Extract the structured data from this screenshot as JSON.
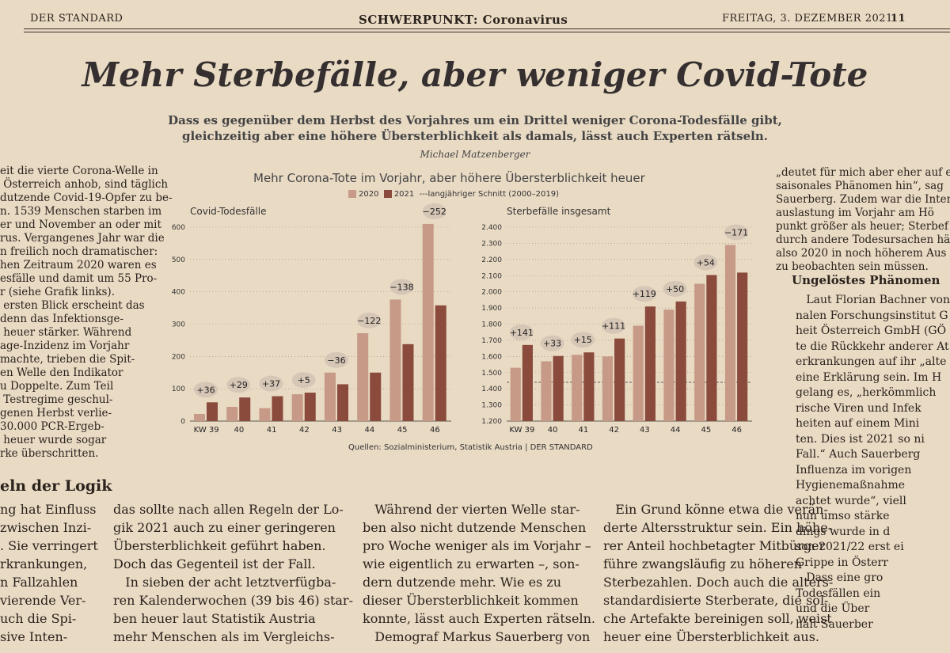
{
  "masthead": {
    "paper": "DER STANDARD",
    "section": "SCHWERPUNKT: Coronavirus",
    "date": "FREITAG, 3. DEZEMBER 2021",
    "page": "11"
  },
  "article": {
    "headline": "Mehr Sterbefälle, aber weniger Covid-Tote",
    "subhead_line1": "Dass es gegenüber dem Herbst des Vorjahres um ein Drittel weniger Corona-Todesfälle gibt,",
    "subhead_line2": "gleichzeitig aber eine höhere Übersterblichkeit als damals, lässt auch Experten rätseln.",
    "author": "Michael Matzenberger",
    "left_col": "eit die vierte Corona-Welle in\n Österreich anhob, sind täglich\ndutzende Covid-19-Opfer zu be-\nn. 1539 Menschen starben im\ner und November an oder mit\nrus. Vergangenes Jahr war die\nn freilich noch dramatischer:\nhen Zeitraum 2020 waren es\nesfälle und damit um 55 Pro-\nr (siehe Grafik links).\n ersten Blick erscheint das\ndenn das Infektionsge-\n heuer stärker. Während\nage-Inzidenz im Vorjahr\nmachte, trieben die Spit-\nen Welle den Indikator\nu Doppelte. Zum Teil\n Testregime geschul-\ngenen Herbst verlie-\n30.000 PCR-Ergeb-\n heuer wurde sogar\nrke überschritten.",
    "left_section": "eln der Logik",
    "left_col2": "ng hat Einfluss\nzwischen Inzi-\n. Sie verringert\nrkrankungen,\nn Fallzahlen\nvierende Ver-\nuch die Spi-\nsive Inten-",
    "body_col1": "das sollte nach allen Regeln der Lo-\ngik 2021 auch zu einer geringeren\nÜbersterblichkeit geführt haben.\nDoch das Gegenteil ist der Fall.\n   In sieben der acht letztverfügba-\nren Kalenderwochen (39 bis 46) star-\nben heuer laut Statistik Austria\nmehr Menschen als im Vergleichs-",
    "body_col2": "   Während der vierten Welle star-\nben also nicht dutzende Menschen\npro Woche weniger als im Vorjahr –\nwie eigentlich zu erwarten –, son-\ndern dutzende mehr. Wie es zu\ndieser Übersterblichkeit kommen\nkonnte, lässt auch Experten rätseln.\n   Demograf Markus Sauerberg von",
    "body_col3": "   Ein Grund könne etwa die verän-\nderte Altersstruktur sein. Ein höhe-\nrer Anteil hochbetagter Mitbürger\nführe zwangsläufig zu höheren\nSterbezahlen. Doch auch die alters-\nstandardisierte Sterberate, die sol-\nche Artefakte bereinigen soll, weist\nheuer eine Übersterblichkeit aus.",
    "right_col1": "„deutet für mich aber eher auf ein\nsaisonales Phänomen hin“, sag\nSauerberg. Zudem war die Intensi\nauslastung im Vorjahr am Hö\npunkt größer als heuer; Sterbef\ndurch andere Todesursachen hä\nalso 2020 in noch höherem Aus\nzu beobachten sein müssen.",
    "right_section": "Ungelöstes Phänomen",
    "right_col2": "   Laut Florian Bachner von\nnalen Forschungsinstitut G\nheit Österreich GmbH (GÖ\nte die Rückkehr anderer At\nerkrankungen auf ihr „alte\neine Erklärung sein. Im H\ngelang es, „herkömmlich\nrische Viren und Infek\nheiten auf einem Mini\nten. Dies ist 2021 so ni\nFall.“ Auch Sauerberg\nInfluenza im vorigen\nHygienemaßnahme\nachtet wurde“, viell\nnun umso stärke\ndings wurde in d\nson 2021/22 erst ei\nGrippe in Österr\n   Dass eine gro\nTodesfällen ein\nund die Über\nhält Sauerber"
  },
  "colors": {
    "c2020": "#c69a86",
    "c2021": "#8a4a3c",
    "bubble": "#d6c6b6"
  },
  "chart_data": {
    "title": "Mehr Corona-Tote im Vorjahr, aber höhere Übersterblichkeit heuer",
    "legend": [
      "2020",
      "2021",
      "langjähriger Schnitt (2000–2019)"
    ],
    "source": "Quellen: Sozialministerium, Statistik Austria | DER STANDARD",
    "charts": [
      {
        "type": "bar",
        "title": "Covid-Todesfälle",
        "categories": [
          "KW 39",
          "40",
          "41",
          "42",
          "43",
          "44",
          "45",
          "46"
        ],
        "yticks": [
          "0",
          "100",
          "200",
          "300",
          "400",
          "500",
          "600"
        ],
        "ylim": [
          0,
          600
        ],
        "series": [
          {
            "name": "2020",
            "values": [
              22,
              44,
              40,
              83,
              150,
              272,
              376,
              610
            ]
          },
          {
            "name": "2021",
            "values": [
              58,
              73,
              77,
              88,
              114,
              150,
              238,
              358
            ]
          }
        ],
        "differences": [
          "+36",
          "+29",
          "+37",
          "+5",
          "−36",
          "−122",
          "−138",
          "−252"
        ]
      },
      {
        "type": "bar",
        "title": "Sterbefälle insgesamt",
        "categories": [
          "KW 39",
          "40",
          "41",
          "42",
          "43",
          "44",
          "45",
          "46"
        ],
        "yticks": [
          "1.200",
          "1.300",
          "1.400",
          "1.500",
          "1.600",
          "1.700",
          "1.800",
          "1.900",
          "2.000",
          "2.100",
          "2.200",
          "2.300",
          "2.400"
        ],
        "ylim": [
          1200,
          2400
        ],
        "average": 1440,
        "series": [
          {
            "name": "2020",
            "values": [
              1530,
              1570,
              1610,
              1600,
              1790,
              1890,
              2050,
              2290
            ]
          },
          {
            "name": "2021",
            "values": [
              1671,
              1603,
              1625,
              1711,
              1909,
              1940,
              2104,
              2119
            ]
          }
        ],
        "differences": [
          "+141",
          "+33",
          "+15",
          "+111",
          "+119",
          "+50",
          "+54",
          "−171"
        ]
      }
    ]
  }
}
